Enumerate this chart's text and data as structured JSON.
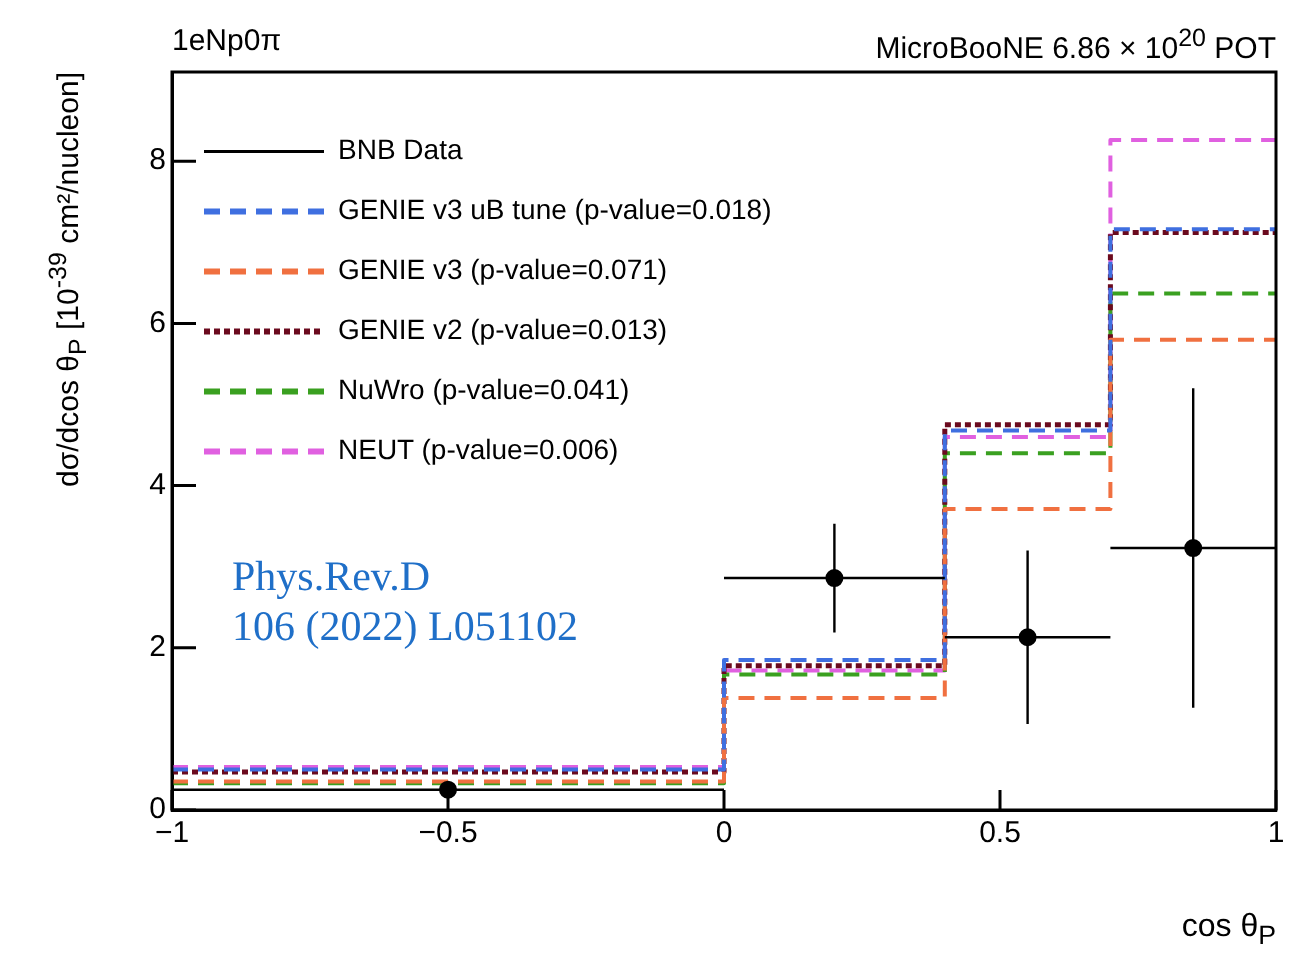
{
  "chart_data": {
    "type": "histogram",
    "title": "1eNp0π",
    "subtitle": "MicroBooNE 6.86 × 10$^{20}$ POT",
    "xlabel": "cos θ$_{P}$",
    "ylabel": "dσ/dcos θ$_{P}$ [10$^{-39}$ cm²/nucleon]",
    "annotations": [
      "Phys.Rev.D\n106 (2022) L051102"
    ],
    "bins": [
      -1,
      0,
      0.4,
      0.7,
      1
    ],
    "xlim": [
      -1,
      1
    ],
    "xticks": [
      -1,
      -0.5,
      0,
      0.5,
      1
    ],
    "ylim": [
      0,
      9.1
    ],
    "yticks": [
      0,
      2,
      4,
      6,
      8
    ],
    "legend": "top left",
    "series": [
      {
        "name": "BNB Data",
        "type": "scatter",
        "color": "#000000",
        "marker": "circle",
        "x": [
          -0.5,
          0.2,
          0.55,
          0.85
        ],
        "values": [
          0.25,
          2.86,
          2.13,
          3.23
        ],
        "errors": [
          0.1,
          0.67,
          1.07,
          1.97
        ],
        "xerrors": [
          0.5,
          0.2,
          0.15,
          0.15
        ]
      },
      {
        "name": "GENIE v3 uB tune (p-value=0.018)",
        "type": "histogram",
        "color": "#3f6fe0",
        "line_style": "dashed",
        "values": [
          0.5,
          1.85,
          4.68,
          7.16
        ]
      },
      {
        "name": "GENIE v3 (p-value=0.071)",
        "type": "histogram",
        "color": "#f07040",
        "line_style": "dashed",
        "values": [
          0.35,
          1.38,
          3.71,
          5.8
        ]
      },
      {
        "name": "GENIE v2 (p-value=0.013)",
        "type": "histogram",
        "color": "#6b0a1e",
        "line_style": "dotted",
        "values": [
          0.47,
          1.78,
          4.75,
          7.12
        ]
      },
      {
        "name": "NuWro (p-value=0.041)",
        "type": "histogram",
        "color": "#3aa020",
        "line_style": "dashed",
        "values": [
          0.33,
          1.67,
          4.4,
          6.37
        ]
      },
      {
        "name": "NEUT (p-value=0.006)",
        "type": "histogram",
        "color": "#e060e0",
        "line_style": "dashed",
        "values": [
          0.53,
          1.72,
          4.6,
          8.26
        ]
      }
    ]
  }
}
